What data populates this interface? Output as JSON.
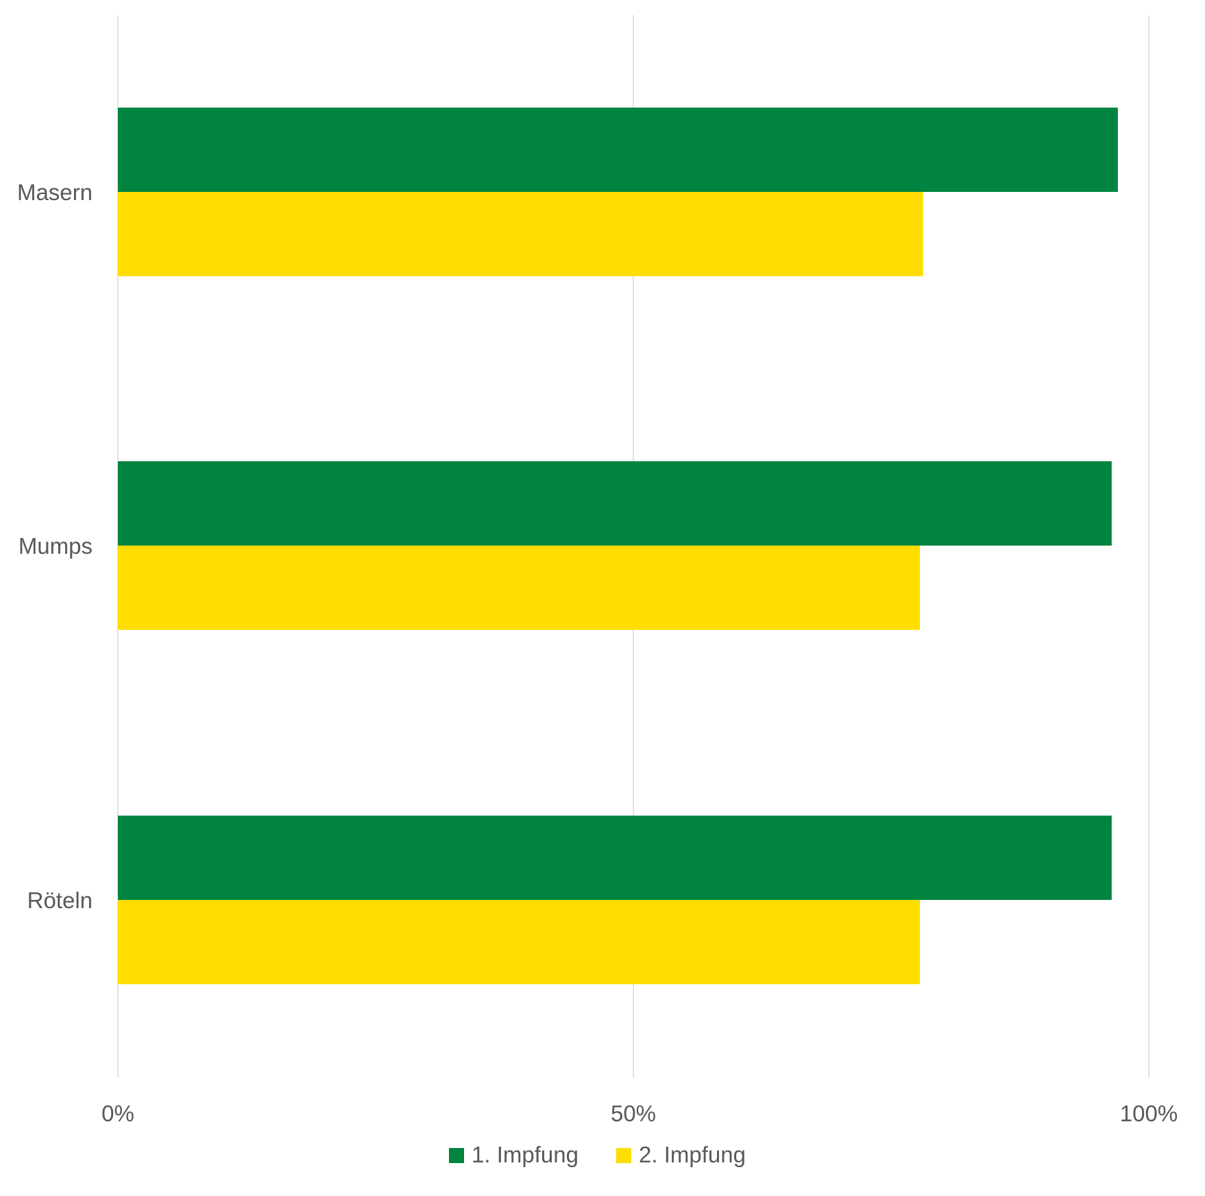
{
  "chart_data": {
    "type": "bar",
    "orientation": "horizontal",
    "categories": [
      "Masern",
      "Mumps",
      "Röteln"
    ],
    "series": [
      {
        "name": "1. Impfung",
        "color": "#00843F",
        "values": [
          97,
          96.4,
          96.4
        ]
      },
      {
        "name": "2. Impfung",
        "color": "#FFDD00",
        "values": [
          78.1,
          77.8,
          77.8
        ]
      }
    ],
    "x_ticks": [
      {
        "value": 0,
        "label": "0%"
      },
      {
        "value": 50,
        "label": "50%"
      },
      {
        "value": 100,
        "label": "100%"
      }
    ],
    "xlim": [
      0,
      100
    ],
    "grid": true,
    "gridline_color": "#d9d9d9",
    "legend_position": "bottom"
  }
}
